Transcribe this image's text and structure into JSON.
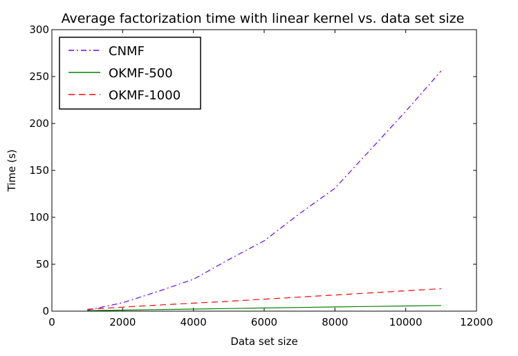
{
  "chart_data": {
    "type": "line",
    "title": "Average factorization time with linear kernel vs. data set size",
    "xlabel": "Data set size",
    "ylabel": "Time (s)",
    "xlim": [
      0,
      12000
    ],
    "ylim": [
      0,
      300
    ],
    "xticks": [
      0,
      2000,
      4000,
      6000,
      8000,
      10000,
      12000
    ],
    "yticks": [
      0,
      50,
      100,
      150,
      200,
      250,
      300
    ],
    "x": [
      1000,
      2000,
      3000,
      4000,
      5000,
      6000,
      7000,
      8000,
      9000,
      10000,
      11000
    ],
    "series": [
      {
        "name": "CNMF",
        "color": "#6a00ff",
        "style": "dashdot",
        "values": [
          1,
          9,
          21,
          34,
          55,
          75,
          104,
          131,
          172,
          213,
          256
        ]
      },
      {
        "name": "OKMF-500",
        "color": "#008000",
        "style": "solid",
        "values": [
          0.5,
          1.1,
          1.7,
          2.2,
          2.8,
          3.4,
          3.9,
          4.5,
          5.0,
          5.5,
          6.0
        ]
      },
      {
        "name": "OKMF-1000",
        "color": "#ff0000",
        "style": "dashed",
        "values": [
          2,
          4.3,
          6.5,
          8.5,
          10.5,
          12.8,
          15,
          17.2,
          19.5,
          21.7,
          24
        ]
      }
    ],
    "legend_position": "top-left",
    "grid": false
  }
}
